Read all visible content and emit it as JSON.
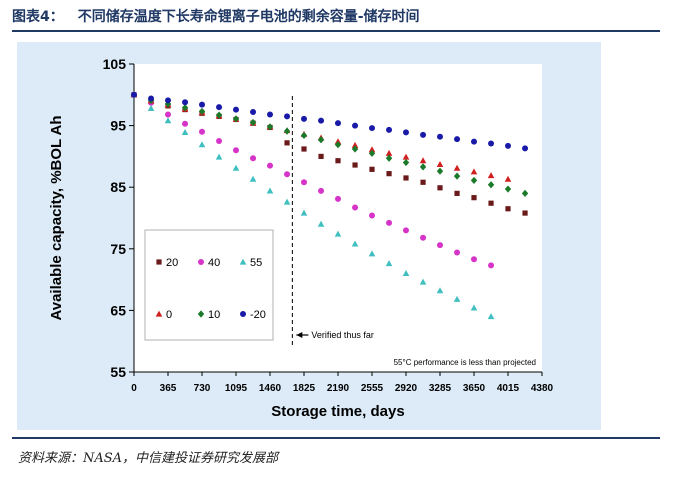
{
  "figure": {
    "label": "图表4：",
    "title": "不同储存温度下长寿命锂离子电池的剩余容量-储存时间",
    "source": "资料来源：NASA，中信建投证券研究发展部"
  },
  "chart_data": {
    "type": "scatter",
    "xlabel": "Storage time, days",
    "ylabel": "Available capacity, %BOL Ah",
    "xlim": [
      0,
      4380
    ],
    "ylim": [
      55,
      105
    ],
    "xticks": [
      0,
      365,
      730,
      1095,
      1460,
      1825,
      2190,
      2555,
      2920,
      3285,
      3650,
      4015,
      4380
    ],
    "yticks": [
      55,
      65,
      75,
      85,
      95,
      105
    ],
    "grid": false,
    "legend_position": "left-center",
    "annotations": {
      "verified": "Verified thus far",
      "verified_x": 1700,
      "note": "55°C performance is less than projected"
    },
    "x": [
      0,
      183,
      365,
      548,
      730,
      913,
      1095,
      1278,
      1460,
      1643,
      1825,
      2008,
      2190,
      2373,
      2555,
      2738,
      2920,
      3103,
      3285,
      3468,
      3650,
      3833,
      4015,
      4198
    ],
    "series": [
      {
        "name": "20",
        "color": "#6b1a1a",
        "marker": "square",
        "values": [
          100,
          98.9,
          98.2,
          97.6,
          97.0,
          96.5,
          96.0,
          95.4,
          94.7,
          92.2,
          91.2,
          90.0,
          89.3,
          88.6,
          87.9,
          87.2,
          86.5,
          85.8,
          84.9,
          84.0,
          83.3,
          82.4,
          81.5,
          80.8
        ]
      },
      {
        "name": "40",
        "color": "#d633c8",
        "marker": "circle",
        "values": [
          100,
          98.7,
          96.8,
          95.3,
          94.0,
          92.5,
          91.0,
          89.7,
          88.5,
          87.1,
          85.8,
          84.4,
          83.1,
          81.7,
          80.4,
          79.2,
          78.0,
          76.8,
          75.6,
          74.4,
          73.3,
          72.3
        ]
      },
      {
        "name": "55",
        "color": "#3fbfbf",
        "marker": "triangle",
        "values": [
          100,
          97.8,
          95.8,
          93.9,
          91.9,
          89.9,
          88.1,
          86.3,
          84.4,
          82.6,
          80.8,
          79.0,
          77.4,
          75.8,
          74.2,
          72.6,
          71.0,
          69.6,
          68.2,
          66.8,
          65.4,
          64.0
        ]
      },
      {
        "name": "0",
        "color": "#d11f1f",
        "marker": "triangle",
        "values": [
          100,
          99.0,
          98.4,
          97.7,
          97.1,
          96.6,
          96.0,
          95.4,
          94.8,
          94.2,
          93.6,
          93.0,
          92.4,
          91.8,
          91.1,
          90.5,
          89.9,
          89.3,
          88.7,
          88.1,
          87.5,
          86.9,
          86.3
        ]
      },
      {
        "name": "10",
        "color": "#1a7a2a",
        "marker": "diamond",
        "values": [
          100,
          99.1,
          98.5,
          97.9,
          97.3,
          96.7,
          96.1,
          95.5,
          94.8,
          94.1,
          93.4,
          92.7,
          91.9,
          91.2,
          90.5,
          89.7,
          89.0,
          88.3,
          87.6,
          86.8,
          86.1,
          85.4,
          84.7,
          84.0
        ]
      },
      {
        "name": "-20",
        "color": "#1a1aa8",
        "marker": "circle",
        "values": [
          100,
          99.4,
          99.1,
          98.8,
          98.4,
          98.0,
          97.6,
          97.2,
          96.8,
          96.5,
          96.1,
          95.8,
          95.4,
          95.0,
          94.6,
          94.3,
          93.9,
          93.5,
          93.2,
          92.8,
          92.4,
          92.1,
          91.7,
          91.3
        ]
      }
    ]
  }
}
